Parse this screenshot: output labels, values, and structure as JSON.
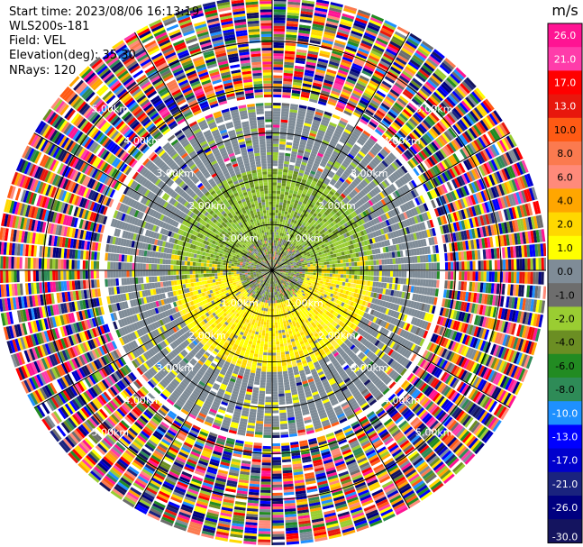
{
  "header": {
    "start_time": "Start time: 2023/08/06 16:13:19",
    "instrument": "WLS200s-181",
    "field": "Field: VEL",
    "elevation": "Elevation(deg): 35.30",
    "nrays": "NRays: 120"
  },
  "chart_data": {
    "type": "heatmap",
    "projection": "polar-ppi",
    "n_rays": 120,
    "max_range_km": 6.0,
    "ring_labels": [
      {
        "range_km": 1.0,
        "text": "1.00km"
      },
      {
        "range_km": 2.0,
        "text": "2.00km"
      },
      {
        "range_km": 3.0,
        "text": "3.00km"
      },
      {
        "range_km": 4.0,
        "text": "4.00km"
      },
      {
        "range_km": 5.0,
        "text": "5.00km"
      }
    ],
    "spokes_deg": [
      0,
      30,
      60,
      90,
      120,
      150,
      180,
      210,
      240,
      270,
      300,
      330
    ],
    "colorbar": {
      "unit": "m/s",
      "ticks": [
        26.0,
        21.0,
        17.0,
        13.0,
        10.0,
        8.0,
        6.0,
        4.0,
        2.0,
        1.0,
        0.0,
        -1.0,
        -2.0,
        -4.0,
        -6.0,
        -8.0,
        -10.0,
        -13.0,
        -17.0,
        -21.0,
        -26.0,
        -30.0
      ],
      "tick_labels": [
        "26.0",
        "21.0",
        "17.0",
        "13.0",
        "10.0",
        "8.0",
        "6.0",
        "4.0",
        "2.0",
        "1.0",
        "0.0",
        "-1.0",
        "-2.0",
        "-4.0",
        "-6.0",
        "-8.0",
        "-10.0",
        "-13.0",
        "-17.0",
        "-21.0",
        "-26.0",
        "-30.0"
      ],
      "colors": [
        "#ff1493",
        "#ff3caa",
        "#ff0000",
        "#e8170d",
        "#ff5a14",
        "#fb7a4f",
        "#ff8a7a",
        "#ffa600",
        "#ffd800",
        "#ffff00",
        "#7f8c97",
        "#6d6d6d",
        "#9acd32",
        "#6b8e23",
        "#228b22",
        "#2e8b57",
        "#1e90ff",
        "#0000ff",
        "#0000cd",
        "#1a237e",
        "#000080",
        "#14145f"
      ]
    },
    "regions": [
      {
        "r_km": [
          0.0,
          0.8
        ],
        "field": "near-zero mixed (green/grey/orange)"
      },
      {
        "r_km": [
          0.8,
          2.2
        ],
        "north": "negative (-2 to -4, green)",
        "south": "positive (2 to 4, yellow)"
      },
      {
        "r_km": [
          2.2,
          3.6
        ],
        "field": "noise near 0 (grey)"
      },
      {
        "r_km": [
          3.6,
          6.0
        ],
        "field": "random noise across full scale"
      }
    ]
  }
}
